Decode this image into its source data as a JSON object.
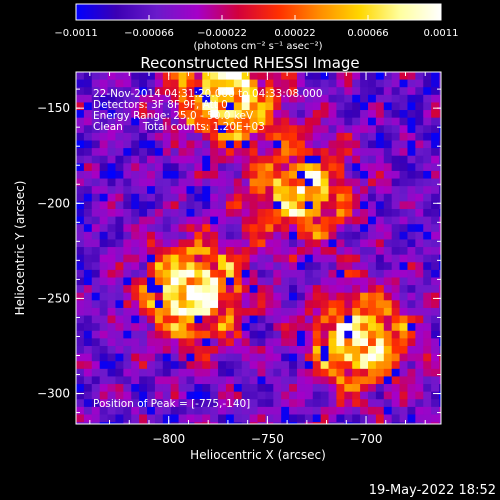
{
  "chart_data": {
    "type": "heatmap",
    "title": "Reconstructed RHESSI Image",
    "xlabel": "Heliocentric X (arcsec)",
    "ylabel": "Heliocentric Y (arcsec)",
    "xlim": [
      -847,
      -662
    ],
    "ylim": [
      -316,
      -131
    ],
    "x_ticks": [
      -800,
      -750,
      -700
    ],
    "x_tick_labels": [
      "−800",
      "−750",
      "−700"
    ],
    "y_ticks": [
      -150,
      -200,
      -250,
      -300
    ],
    "y_tick_labels": [
      "−150",
      "−200",
      "−250",
      "−300"
    ],
    "colorbar": {
      "min": -0.0011,
      "max": 0.0011,
      "ticks": [
        -0.0011,
        -0.00066,
        -0.00022,
        0.00022,
        0.00066,
        0.0011
      ],
      "tick_labels": [
        "−0.0011",
        "−0.00066",
        "−0.00022",
        "0.00022",
        "0.00066",
        "0.0011"
      ],
      "units": "(photons cm⁻² s⁻¹ asec⁻²)",
      "colormap": [
        "#0000ff",
        "#3c00b4",
        "#6a1acb",
        "#a500c8",
        "#d2003c",
        "#ff3000",
        "#ff8c00",
        "#ffd700",
        "#ffffa0",
        "#ffffff"
      ]
    },
    "annotations": [
      "22-Nov-2014 04:31:20.000 to 04:33:08.000",
      "Detectors: 3F 8F 9F, Att 0",
      "Energy Range: 25.0 - 50.0 keV",
      "Clean      Total counts: 1.20E+03",
      "Position of Peak = [-775,-140]"
    ],
    "grid": false,
    "bright_features": [
      {
        "x": -790,
        "y": -245,
        "level": 0.95
      },
      {
        "x": -705,
        "y": -270,
        "level": 0.85
      },
      {
        "x": -773,
        "y": -140,
        "level": 0.9
      },
      {
        "x": -735,
        "y": -192,
        "level": 0.75
      }
    ]
  },
  "footer": {
    "timestamp": "19-May-2022 18:52"
  }
}
